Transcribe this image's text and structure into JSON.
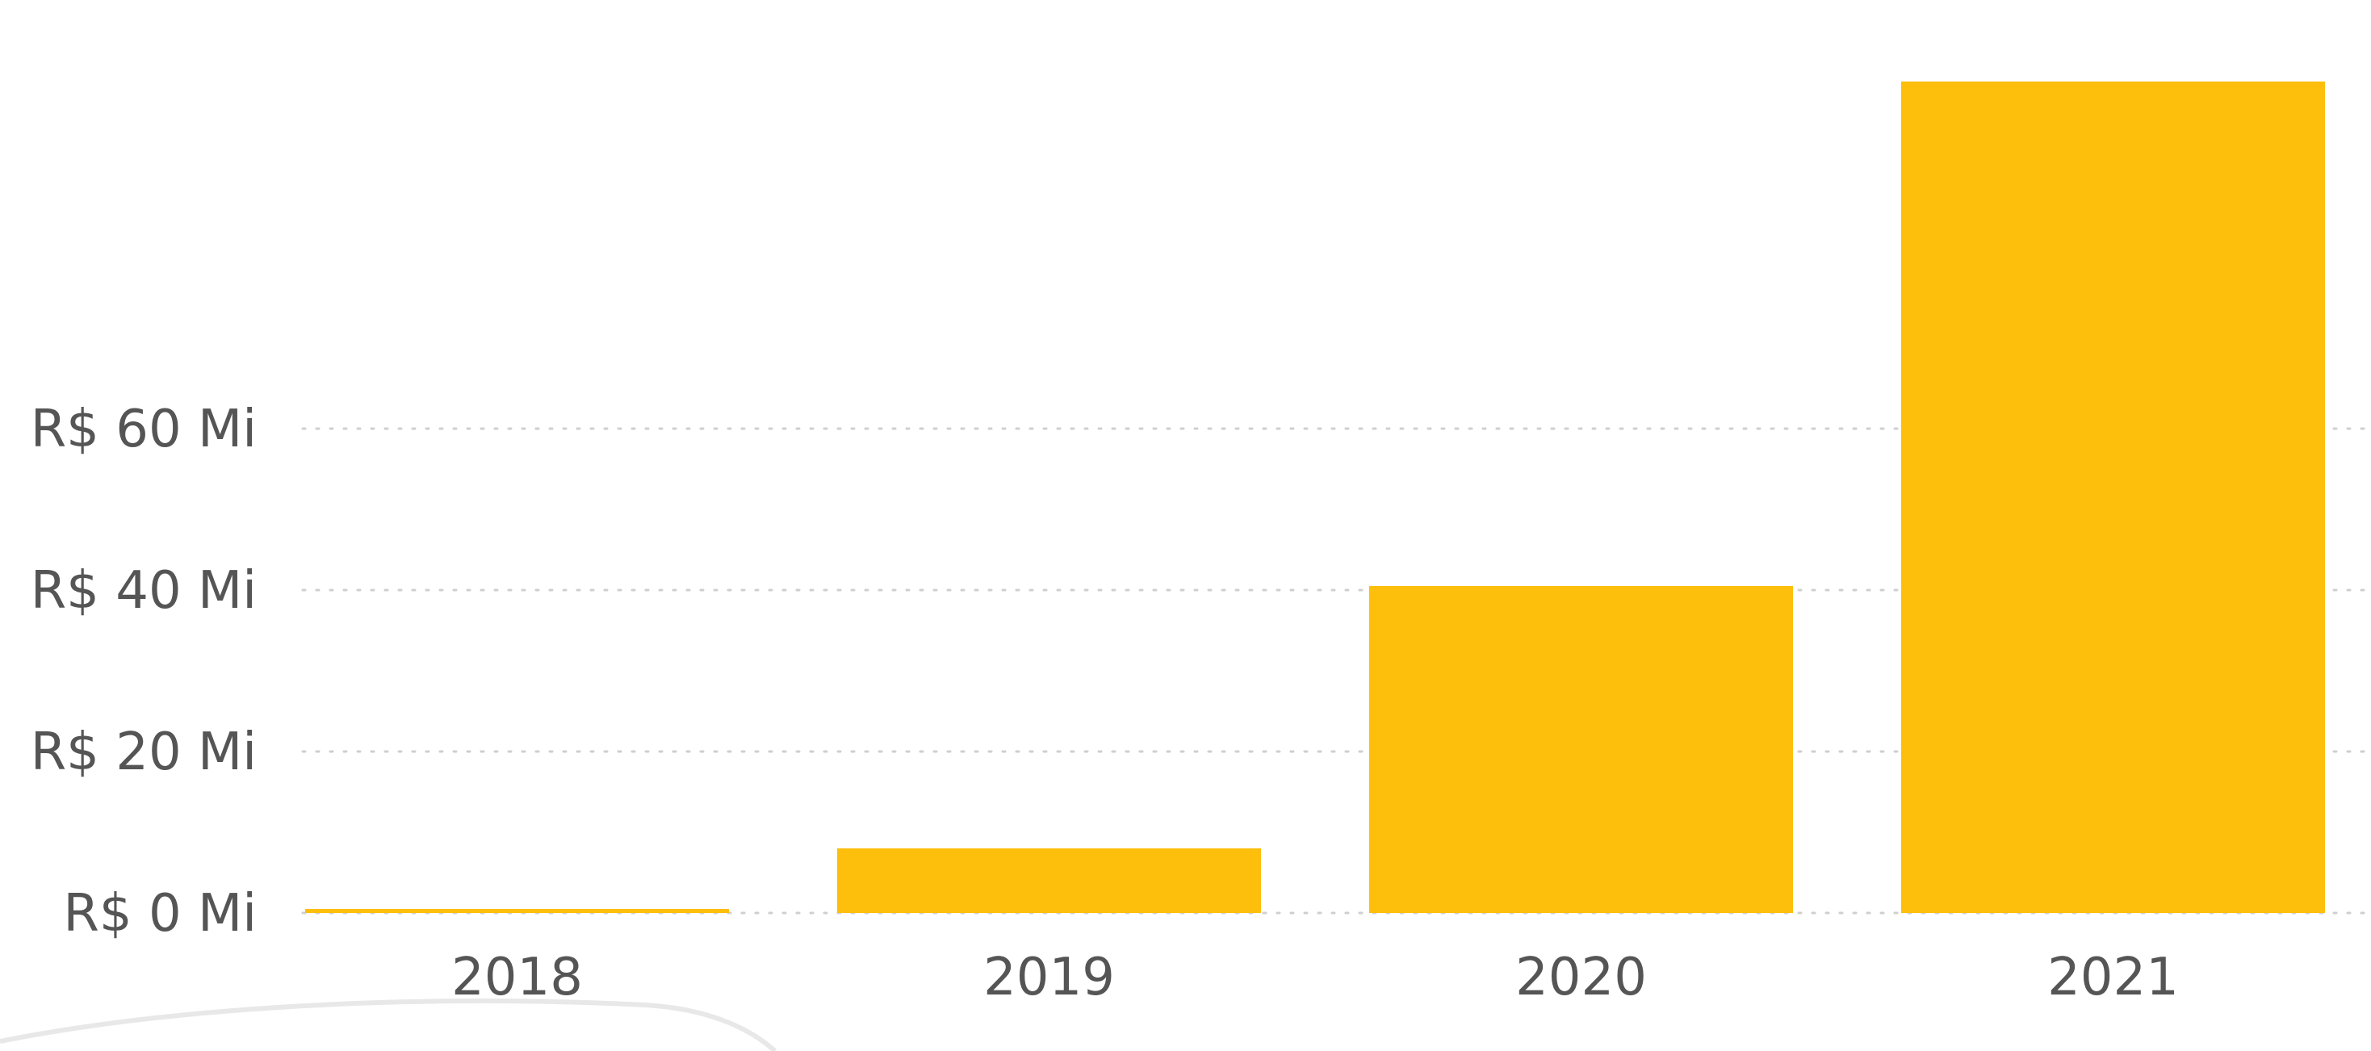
{
  "chart_data": {
    "type": "bar",
    "categories": [
      "2018",
      "2019",
      "2020",
      "2021"
    ],
    "values": [
      0.3,
      8,
      40.5,
      103
    ],
    "unit": "R$ Mi",
    "yticks": [
      {
        "value": 0,
        "label": "R$ 0 Mi"
      },
      {
        "value": 20,
        "label": "R$ 20 Mi"
      },
      {
        "value": 40,
        "label": "R$ 40 Mi"
      },
      {
        "value": 60,
        "label": "R$ 60 Mi"
      }
    ],
    "ylim": [
      0,
      103
    ],
    "grid": true,
    "bar_color": "#FDBE0C",
    "grid_color": "#CFCFCF",
    "text_color": "#555555"
  }
}
